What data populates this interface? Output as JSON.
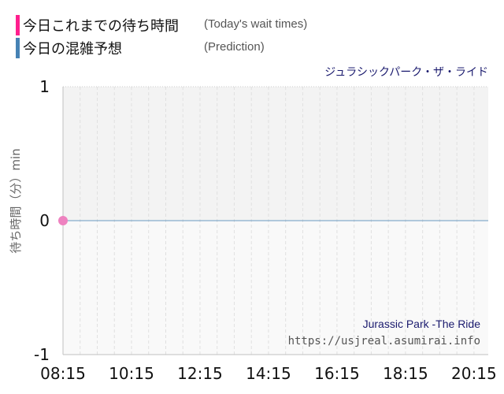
{
  "legend": [
    {
      "label": "今日これまでの待ち時間",
      "label_en": "(Today's wait times)",
      "color": "#ff1f8e"
    },
    {
      "label": "今日の混雑予想",
      "label_en": "(Prediction)",
      "color": "#4682b4"
    }
  ],
  "chart_data": {
    "type": "line",
    "title": "ジュラシックパーク・ザ・ライド",
    "ylabel": "待ち時間（分）min",
    "xlabel": "",
    "x_ticks": [
      "08:15",
      "10:15",
      "12:15",
      "14:15",
      "16:15",
      "18:15",
      "20:15"
    ],
    "x_range": [
      "08:15",
      "20:40"
    ],
    "ylim": [
      -1,
      1
    ],
    "y_ticks": [
      "1",
      "0",
      "-1"
    ],
    "grid": true,
    "series": [
      {
        "name": "今日これまでの待ち時間",
        "color": "#ee82c0",
        "points": [
          {
            "x": "08:15",
            "y": 0
          }
        ]
      },
      {
        "name": "今日の混雑予想",
        "color": "#4682b4",
        "points": [
          {
            "x": "08:15",
            "y": 0
          },
          {
            "x": "20:40",
            "y": 0
          }
        ]
      }
    ],
    "watermark": {
      "name": "Jurassic Park -The Ride",
      "url": "https://usjreal.asumirai.info"
    }
  }
}
